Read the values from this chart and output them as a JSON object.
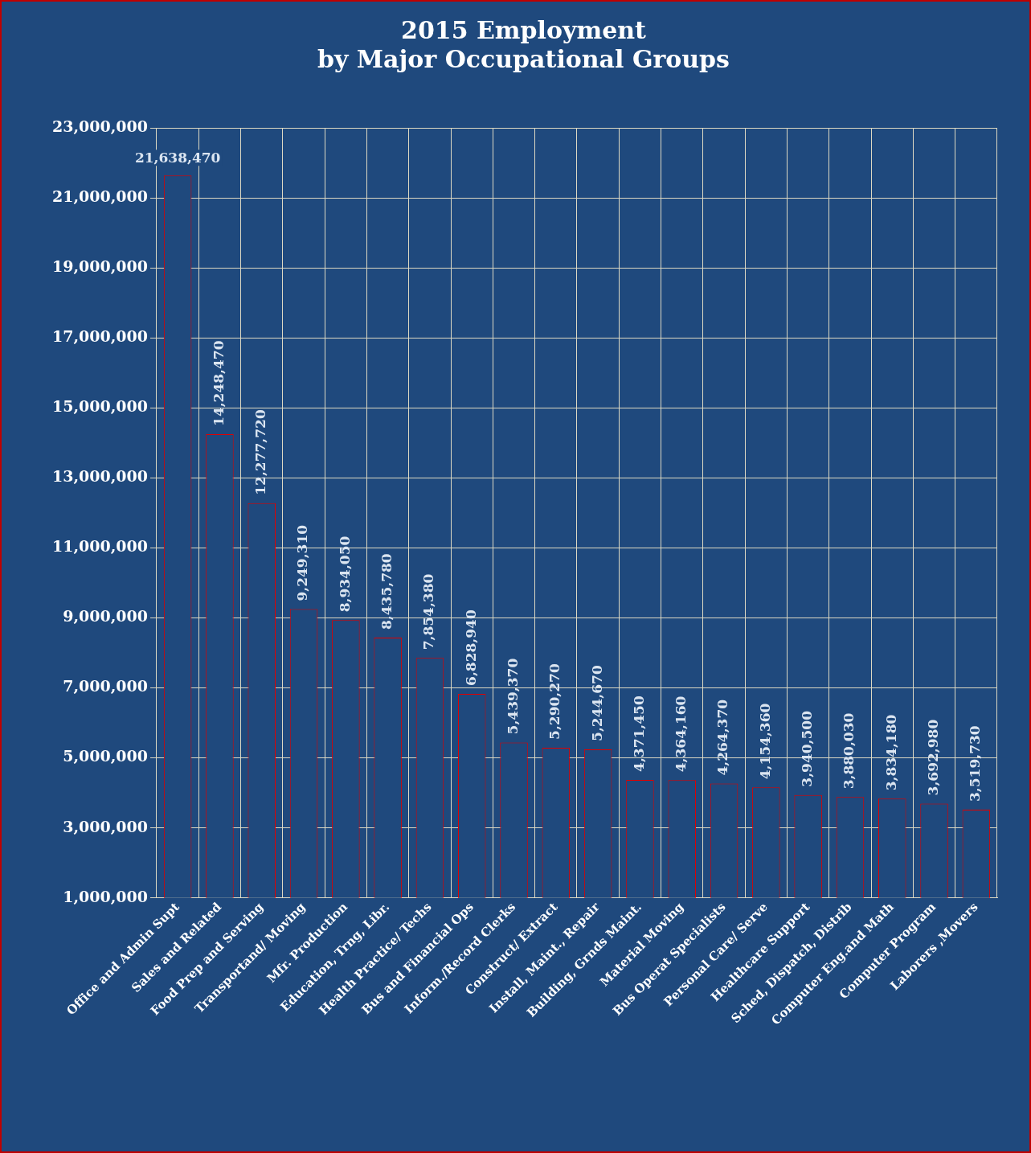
{
  "chart_data": {
    "type": "bar",
    "title": "2015 Employment\nby Major Occupational Groups",
    "categories": [
      "Office and Admin Supt",
      "Sales and Related",
      "Food Prep and Serving",
      "Transportand/ Moving",
      "Mfr. Production",
      "Education, Trng, Libr.",
      "Health Practice/ Techs",
      "Bus and Financial Ops",
      "Inform./Record Clerks",
      "Construct/ Extract",
      "Install, Maint., Repair",
      "Building, Grnds Maint.",
      "Material Moving",
      "Bus Operat Specialists",
      "Personal Care/ Serve",
      "Healthcare Support",
      "Sched, Dispatch, Distrib",
      "Computer Eng.and Math",
      "Computer Program",
      "Laborers ,Movers"
    ],
    "values": [
      21638470,
      14248470,
      12277720,
      9249310,
      8934050,
      8435780,
      7854380,
      6828940,
      5439370,
      5290270,
      5244670,
      4371450,
      4364160,
      4264370,
      4154360,
      3940500,
      3880030,
      3834180,
      3692980,
      3519730
    ],
    "value_labels": [
      "21,638,470",
      "14,248,470",
      "12,277,720",
      "9,249,310",
      "8,934,050",
      "8,435,780",
      "7,854,380",
      "6,828,940",
      "5,439,370",
      "5,290,270",
      "5,244,670",
      "4,371,450",
      "4,364,160",
      "4,264,370",
      "4,154,360",
      "3,940,500",
      "3,880,030",
      "3,834,180",
      "3,692,980",
      "3,519,730"
    ],
    "color": "#1f497d",
    "ylim": [
      1000000,
      23000000
    ],
    "yticks": [
      {
        "value": 1000000,
        "label": "1,000,000"
      },
      {
        "value": 3000000,
        "label": "3,000,000"
      },
      {
        "value": 5000000,
        "label": "5,000,000"
      },
      {
        "value": 7000000,
        "label": "7,000,000"
      },
      {
        "value": 9000000,
        "label": "9,000,000"
      },
      {
        "value": 11000000,
        "label": "11,000,000"
      },
      {
        "value": 13000000,
        "label": "13,000,000"
      },
      {
        "value": 15000000,
        "label": "15,000,000"
      },
      {
        "value": 17000000,
        "label": "17,000,000"
      },
      {
        "value": 19000000,
        "label": "19,000,000"
      },
      {
        "value": 21000000,
        "label": "21,000,000"
      },
      {
        "value": 23000000,
        "label": "23,000,000"
      }
    ],
    "grid": true
  }
}
